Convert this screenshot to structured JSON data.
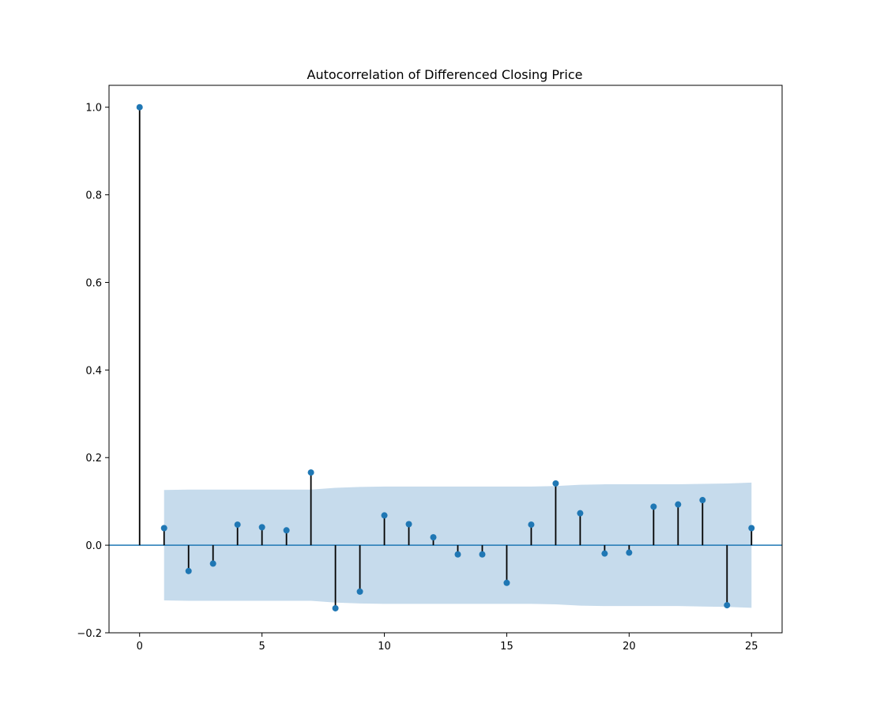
{
  "chart_data": {
    "type": "stem",
    "title": "Autocorrelation of Differenced Closing Price",
    "xlabel": "",
    "ylabel": "",
    "xlim": [
      -1.25,
      26.25
    ],
    "ylim": [
      -0.2,
      1.05
    ],
    "x_ticks": [
      0,
      5,
      10,
      15,
      20,
      25
    ],
    "y_ticks": [
      -0.2,
      0.0,
      0.2,
      0.4,
      0.6,
      0.8,
      1.0
    ],
    "y_tick_labels": [
      "−0.2",
      "0.0",
      "0.2",
      "0.4",
      "0.6",
      "0.8",
      "1.0"
    ],
    "lags": [
      0,
      1,
      2,
      3,
      4,
      5,
      6,
      7,
      8,
      9,
      10,
      11,
      12,
      13,
      14,
      15,
      16,
      17,
      18,
      19,
      20,
      21,
      22,
      23,
      24,
      25
    ],
    "acf": [
      1.0,
      0.039,
      -0.059,
      -0.042,
      0.047,
      0.041,
      0.034,
      0.166,
      -0.144,
      -0.106,
      0.068,
      0.048,
      0.018,
      -0.021,
      -0.021,
      -0.086,
      0.047,
      0.141,
      0.073,
      -0.019,
      -0.017,
      0.088,
      0.093,
      0.103,
      -0.137,
      0.039
    ],
    "confidence_band": {
      "lags": [
        1,
        2,
        3,
        4,
        5,
        6,
        7,
        8,
        9,
        10,
        11,
        12,
        13,
        14,
        15,
        16,
        17,
        18,
        19,
        20,
        21,
        22,
        23,
        24,
        25
      ],
      "upper": [
        0.126,
        0.127,
        0.127,
        0.127,
        0.127,
        0.127,
        0.127,
        0.131,
        0.133,
        0.134,
        0.134,
        0.134,
        0.134,
        0.134,
        0.134,
        0.134,
        0.135,
        0.138,
        0.139,
        0.139,
        0.139,
        0.139,
        0.14,
        0.141,
        0.143
      ]
    },
    "grid": false,
    "colors": {
      "marker": "#1f77b4",
      "stem": "#000000",
      "band": "#c6dbec",
      "zero_line": "#1f77b4"
    }
  }
}
